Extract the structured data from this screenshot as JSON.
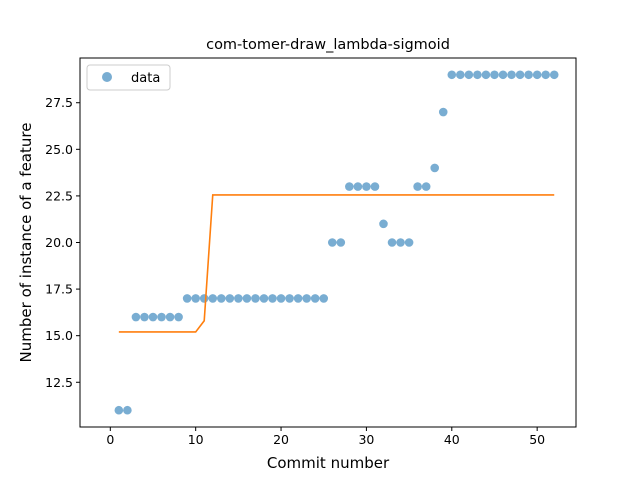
{
  "chart_data": {
    "type": "scatter",
    "title": "com-tomer-draw_lambda-sigmoid",
    "xlabel": "Commit number",
    "ylabel": "Number of instance of a feature",
    "xlim": [
      -3.55,
      54.55
    ],
    "ylim": [
      10.1,
      29.9
    ],
    "xticks": [
      0,
      10,
      20,
      30,
      40,
      50
    ],
    "yticks": [
      12.5,
      15.0,
      17.5,
      20.0,
      22.5,
      25.0,
      27.5
    ],
    "ytick_labels": [
      "12.5",
      "15.0",
      "17.5",
      "20.0",
      "22.5",
      "25.0",
      "27.5"
    ],
    "grid": false,
    "legend": {
      "location": "upper left",
      "entries": [
        "data"
      ]
    },
    "series": [
      {
        "name": "data",
        "kind": "scatter",
        "color": "#1f77b4",
        "alpha": 0.6,
        "x": [
          1,
          2,
          3,
          4,
          5,
          6,
          7,
          8,
          9,
          10,
          11,
          12,
          13,
          14,
          15,
          16,
          17,
          18,
          19,
          20,
          21,
          22,
          23,
          24,
          25,
          26,
          27,
          28,
          29,
          30,
          31,
          32,
          33,
          34,
          35,
          36,
          37,
          38,
          39,
          40,
          41,
          42,
          43,
          44,
          45,
          46,
          47,
          48,
          49,
          50,
          51,
          52
        ],
        "y": [
          11,
          11,
          16,
          16,
          16,
          16,
          16,
          16,
          17,
          17,
          17,
          17,
          17,
          17,
          17,
          17,
          17,
          17,
          17,
          17,
          17,
          17,
          17,
          17,
          17,
          20,
          20,
          23,
          23,
          23,
          23,
          21,
          20,
          20,
          20,
          23,
          23,
          24,
          27,
          29,
          29,
          29,
          29,
          29,
          29,
          29,
          29,
          29,
          29,
          29,
          29,
          29
        ]
      },
      {
        "kind": "line",
        "color": "#ff7f0e",
        "x": [
          1,
          10,
          11,
          12,
          52
        ],
        "y": [
          15.2,
          15.2,
          15.8,
          22.55,
          22.55
        ]
      }
    ]
  }
}
